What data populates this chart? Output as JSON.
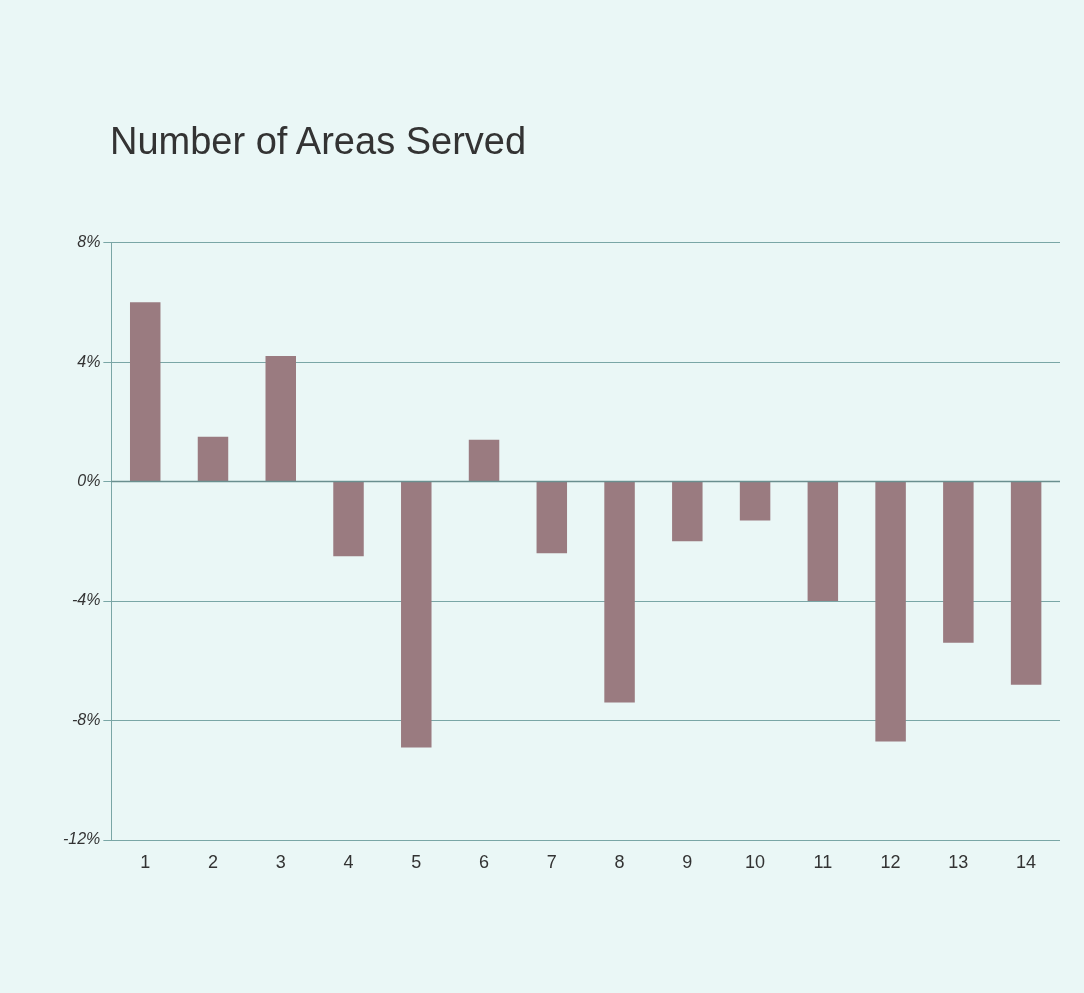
{
  "chart_data": {
    "type": "bar",
    "title": "Number of Areas Served",
    "categories": [
      "1",
      "2",
      "3",
      "4",
      "5",
      "6",
      "7",
      "8",
      "9",
      "10",
      "11",
      "12",
      "13",
      "14"
    ],
    "values": [
      6.0,
      1.5,
      4.2,
      -2.5,
      -8.9,
      1.4,
      -2.4,
      -7.4,
      -2.0,
      -1.3,
      -4.0,
      -8.7,
      -5.4,
      -6.8
    ],
    "color": "#9a7b80",
    "ylim": [
      -12,
      8
    ],
    "yticks": [
      {
        "value": 8,
        "label": "8%"
      },
      {
        "value": 4,
        "label": "4%"
      },
      {
        "value": 0,
        "label": "0%"
      },
      {
        "value": -4,
        "label": "-4%"
      },
      {
        "value": -8,
        "label": "-8%"
      },
      {
        "value": -12,
        "label": "-12%"
      }
    ],
    "grid": "y",
    "legend": false
  }
}
